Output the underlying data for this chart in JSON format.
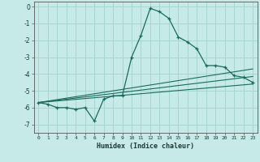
{
  "xlabel": "Humidex (Indice chaleur)",
  "ylabel": "",
  "background_color": "#c5eae7",
  "grid_color": "#a8d5d1",
  "line_color": "#1a6b5e",
  "xlim": [
    -0.5,
    23.5
  ],
  "ylim": [
    -7.5,
    0.3
  ],
  "yticks": [
    0,
    -1,
    -2,
    -3,
    -4,
    -5,
    -6,
    -7
  ],
  "xticks": [
    0,
    1,
    2,
    3,
    4,
    5,
    6,
    7,
    8,
    9,
    10,
    11,
    12,
    13,
    14,
    15,
    16,
    17,
    18,
    19,
    20,
    21,
    22,
    23
  ],
  "series": {
    "main": {
      "x": [
        0,
        1,
        2,
        3,
        4,
        5,
        6,
        7,
        8,
        9,
        10,
        11,
        12,
        13,
        14,
        15,
        16,
        17,
        18,
        19,
        20,
        21,
        22,
        23
      ],
      "y": [
        -5.7,
        -5.8,
        -6.0,
        -6.0,
        -6.1,
        -6.0,
        -6.8,
        -5.5,
        -5.3,
        -5.3,
        -3.0,
        -1.7,
        -0.1,
        -0.3,
        -0.7,
        -1.8,
        -2.1,
        -2.5,
        -3.5,
        -3.5,
        -3.6,
        -4.1,
        -4.2,
        -4.5
      ]
    },
    "line1": {
      "x": [
        0,
        23
      ],
      "y": [
        -5.7,
        -3.7
      ]
    },
    "line2": {
      "x": [
        0,
        23
      ],
      "y": [
        -5.7,
        -4.15
      ]
    },
    "line3": {
      "x": [
        0,
        23
      ],
      "y": [
        -5.7,
        -4.6
      ]
    }
  }
}
